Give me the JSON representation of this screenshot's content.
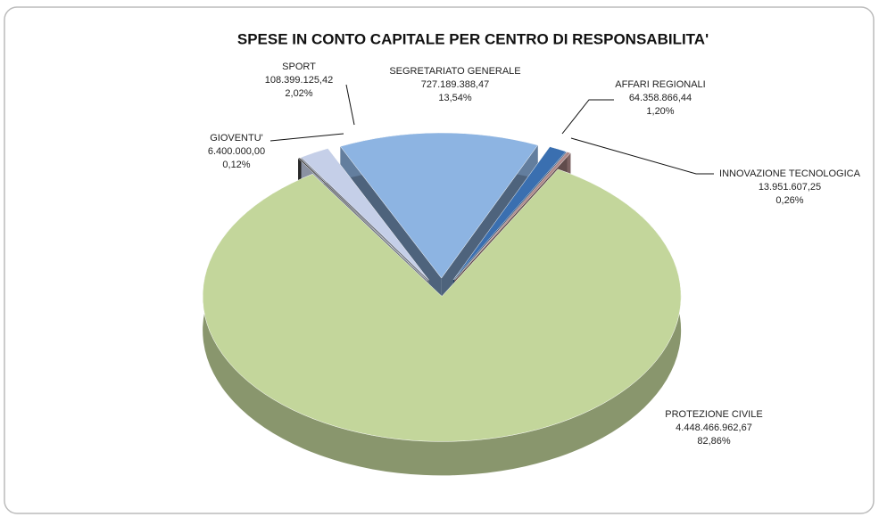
{
  "chart_data": {
    "type": "pie3d",
    "title": "SPESE IN CONTO CAPITALE  PER CENTRO DI RESPONSABILITA'",
    "categories": [
      "SEGRETARIATO GENERALE",
      "AFFARI REGIONALI",
      "INNOVAZIONE TECNOLOGICA",
      "PROTEZIONE CIVILE",
      "GIOVENTU'",
      "SPORT"
    ],
    "values": [
      727189388.47,
      64358866.44,
      13951607.25,
      4448466962.67,
      6400000.0,
      108399125.42
    ],
    "value_labels": [
      "727.189.388,47",
      "64.358.866,44",
      "13.951.607,25",
      "4.448.466.962,67",
      "6.400.000,00",
      "108.399.125,42"
    ],
    "percents": [
      13.54,
      1.2,
      0.26,
      82.86,
      0.12,
      2.02
    ],
    "percent_labels": [
      "13,54%",
      "1,20%",
      "0,26%",
      "82,86%",
      "0,12%",
      "2,02%"
    ],
    "colors": [
      "#8db4e2",
      "#3a6fb0",
      "#b08a8a",
      "#c3d69b",
      "#404040",
      "#c5cfe8"
    ]
  }
}
